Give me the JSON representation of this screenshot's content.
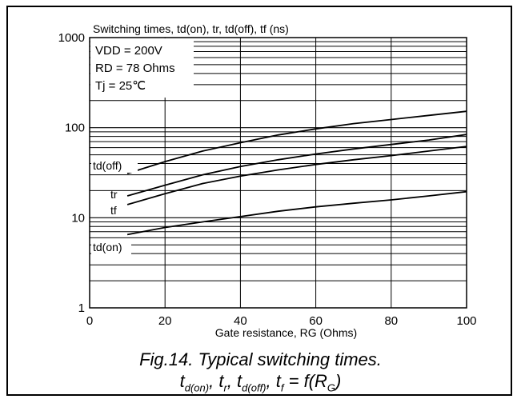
{
  "chart_data": {
    "type": "line",
    "title": "Switching times, td(on), tr, td(off), tf (ns)",
    "xlabel": "Gate resistance, RG (Ohms)",
    "ylabel": "",
    "xlim": [
      0,
      100
    ],
    "ylim": [
      1,
      1000
    ],
    "yscale": "log",
    "xticks": [
      "0",
      "20",
      "40",
      "60",
      "80",
      "100"
    ],
    "yticks": [
      "1",
      "10",
      "100",
      "1000"
    ],
    "grid": true,
    "conditions": [
      "VDD = 200V",
      "RD = 78 Ohms",
      "Tj = 25℃"
    ],
    "series": [
      {
        "name": "td(off)",
        "x": [
          10,
          20,
          30,
          40,
          50,
          60,
          70,
          80,
          90,
          100
        ],
        "values": [
          31,
          42,
          55,
          68,
          83,
          97,
          111,
          123,
          137,
          152
        ]
      },
      {
        "name": "tr",
        "x": [
          10,
          20,
          30,
          40,
          50,
          60,
          70,
          80,
          90,
          100
        ],
        "values": [
          17.5,
          23,
          30,
          37,
          44,
          51,
          58,
          65,
          73,
          84
        ]
      },
      {
        "name": "tf",
        "x": [
          10,
          20,
          30,
          40,
          50,
          60,
          70,
          80,
          90,
          100
        ],
        "values": [
          14,
          18.5,
          24,
          29,
          34,
          39,
          44,
          49,
          55,
          62
        ]
      },
      {
        "name": "td(on)",
        "x": [
          10,
          20,
          30,
          40,
          50,
          60,
          70,
          80,
          90,
          100
        ],
        "values": [
          6.5,
          7.8,
          9,
          10.3,
          11.8,
          13.2,
          14.5,
          15.8,
          17.5,
          19.5
        ]
      }
    ]
  },
  "caption": {
    "line1": "Fig.14.  Typical switching times.",
    "line2": [
      {
        "base": "t",
        "sub": "d(on)",
        "after": ", "
      },
      {
        "base": "t",
        "sub": "r",
        "after": ", "
      },
      {
        "base": "t",
        "sub": "d(off)",
        "after": ", "
      },
      {
        "base": "t",
        "sub": "f",
        "after": " = f(R"
      },
      {
        "base": "",
        "sub": "G",
        "after": ")"
      }
    ]
  }
}
